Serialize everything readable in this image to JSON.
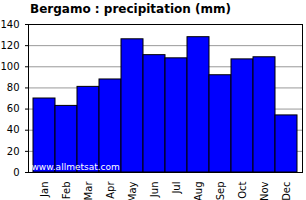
{
  "chart_data": {
    "type": "bar",
    "title": "Bergamo : precipitation (mm)",
    "categories": [
      "Jan",
      "Feb",
      "Mar",
      "Apr",
      "May",
      "Jun",
      "Jul",
      "Aug",
      "Sep",
      "Oct",
      "Nov",
      "Dec"
    ],
    "values": [
      70,
      63,
      81,
      88,
      126,
      111,
      108,
      128,
      92,
      107,
      109,
      54
    ],
    "color": "#0000ff",
    "ylim": [
      0,
      140
    ],
    "yticks": [
      0,
      20,
      40,
      60,
      80,
      100,
      120,
      140
    ],
    "grid": true,
    "annotation": "www.allmetsat.com"
  }
}
